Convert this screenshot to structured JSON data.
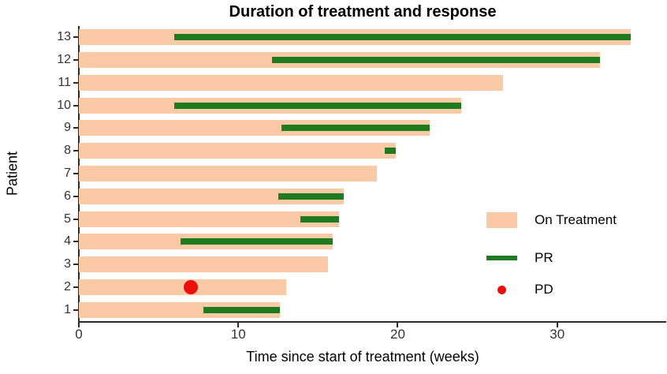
{
  "title": "Duration of treatment and response",
  "axes": {
    "x_label": "Time since start of treatment (weeks)",
    "y_label": "Patient",
    "x_ticks": [
      0,
      10,
      20,
      30
    ],
    "x_max": 35.6
  },
  "legend": {
    "items": [
      {
        "key": "on-treatment",
        "label": "On Treatment",
        "swatch": "rect"
      },
      {
        "key": "pr",
        "label": "PR",
        "swatch": "line"
      },
      {
        "key": "pd",
        "label": "PD",
        "swatch": "dot"
      }
    ]
  },
  "colors": {
    "on_treatment": "#FAC9A6",
    "pr": "#1E7B1E",
    "pd": "#ED0E0E",
    "axis": "#2b2b2b",
    "tick_text": "#333333"
  },
  "chart_data": {
    "type": "bar",
    "orientation": "horizontal",
    "title": "Duration of treatment and response",
    "xlabel": "Time since start of treatment (weeks)",
    "ylabel": "Patient",
    "xlim": [
      0,
      35.6
    ],
    "x_ticks": [
      0,
      10,
      20,
      30
    ],
    "grid": false,
    "legend_position": "inside-right",
    "series_legend": [
      "On Treatment",
      "PR",
      "PD"
    ],
    "patients": [
      {
        "patient": 13,
        "on_treatment_weeks": 34.6,
        "pr_start": 6.0,
        "pr_end": 34.6,
        "pd_week": null
      },
      {
        "patient": 12,
        "on_treatment_weeks": 32.7,
        "pr_start": 12.1,
        "pr_end": 32.7,
        "pd_week": null
      },
      {
        "patient": 11,
        "on_treatment_weeks": 26.6,
        "pr_start": null,
        "pr_end": null,
        "pd_week": null
      },
      {
        "patient": 10,
        "on_treatment_weeks": 24.0,
        "pr_start": 6.0,
        "pr_end": 24.0,
        "pd_week": null
      },
      {
        "patient": 9,
        "on_treatment_weeks": 22.0,
        "pr_start": 12.7,
        "pr_end": 22.0,
        "pd_week": null
      },
      {
        "patient": 8,
        "on_treatment_weeks": 19.9,
        "pr_start": 19.2,
        "pr_end": 19.9,
        "pd_week": null
      },
      {
        "patient": 7,
        "on_treatment_weeks": 18.7,
        "pr_start": null,
        "pr_end": null,
        "pd_week": null
      },
      {
        "patient": 6,
        "on_treatment_weeks": 16.6,
        "pr_start": 12.5,
        "pr_end": 16.6,
        "pd_week": null
      },
      {
        "patient": 5,
        "on_treatment_weeks": 16.3,
        "pr_start": 13.9,
        "pr_end": 16.3,
        "pd_week": null
      },
      {
        "patient": 4,
        "on_treatment_weeks": 15.9,
        "pr_start": 6.4,
        "pr_end": 15.9,
        "pd_week": null
      },
      {
        "patient": 3,
        "on_treatment_weeks": 15.6,
        "pr_start": null,
        "pr_end": null,
        "pd_week": null
      },
      {
        "patient": 2,
        "on_treatment_weeks": 13.0,
        "pr_start": null,
        "pr_end": null,
        "pd_week": 7.0
      },
      {
        "patient": 1,
        "on_treatment_weeks": 12.6,
        "pr_start": 7.8,
        "pr_end": 12.6,
        "pd_week": null
      }
    ]
  }
}
